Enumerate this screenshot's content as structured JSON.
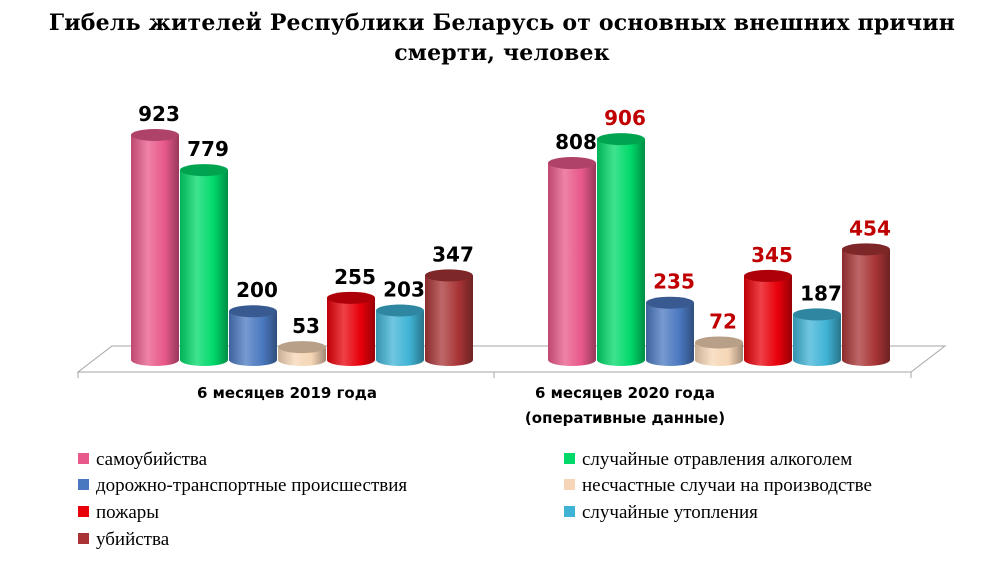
{
  "chart_data": {
    "type": "bar",
    "title": "Гибель жителей Республики Беларусь от основных внешних причин смерти, человек",
    "categories": [
      [
        "6 месяцев 2019 года"
      ],
      [
        "6 месяцев 2020 года",
        "(оперативные данные)"
      ]
    ],
    "series": [
      {
        "name": "самоубийства",
        "color": "#e8588a",
        "values": [
          923,
          808
        ],
        "label_colors": [
          "#000000",
          "#000000"
        ]
      },
      {
        "name": "случайные отравления алкоголем",
        "color": "#00d96a",
        "values": [
          779,
          906
        ],
        "label_colors": [
          "#000000",
          "#c00000"
        ]
      },
      {
        "name": "дорожно-транспортные происшествия",
        "color": "#4a78c0",
        "values": [
          200,
          235
        ],
        "label_colors": [
          "#000000",
          "#c00000"
        ]
      },
      {
        "name": "несчастные случаи на производстве",
        "color": "#f5d5b5",
        "values": [
          53,
          72
        ],
        "label_colors": [
          "#000000",
          "#c00000"
        ]
      },
      {
        "name": "пожары",
        "color": "#e8000a",
        "values": [
          255,
          345
        ],
        "label_colors": [
          "#000000",
          "#c00000"
        ]
      },
      {
        "name": "случайные утопления",
        "color": "#3fb3d5",
        "values": [
          203,
          187
        ],
        "label_colors": [
          "#000000",
          "#000000"
        ]
      },
      {
        "name": "убийства",
        "color": "#a83436",
        "values": [
          347,
          454
        ],
        "label_colors": [
          "#000000",
          "#c00000"
        ]
      }
    ],
    "ylim": [
      0,
      923
    ],
    "grid": false,
    "legend_position": "bottom"
  }
}
